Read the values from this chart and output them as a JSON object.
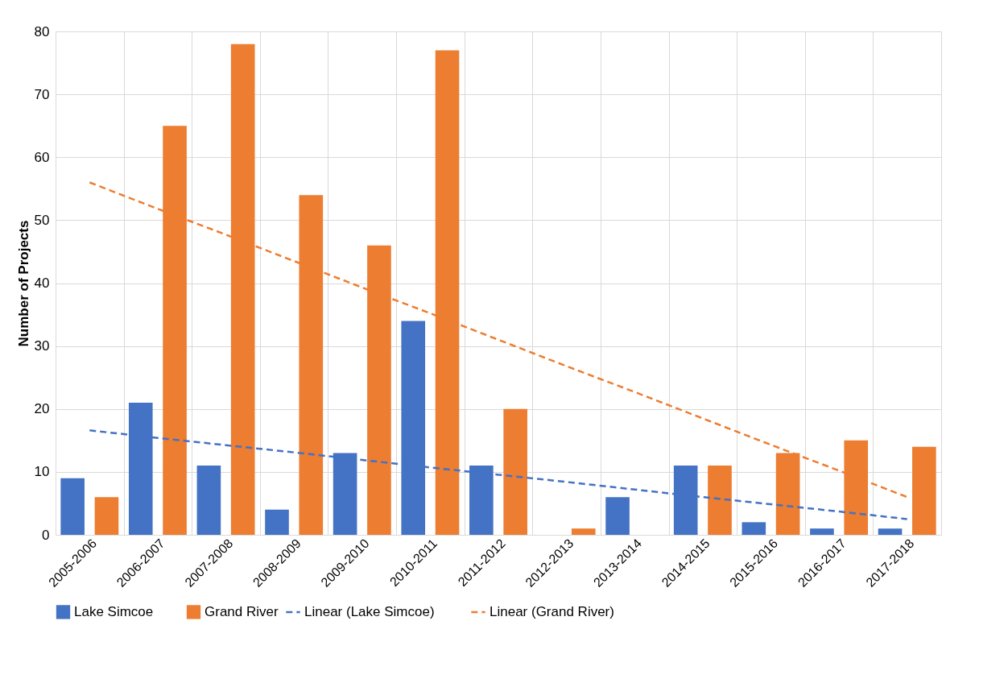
{
  "chart_data": {
    "type": "bar",
    "ylabel": "Number of Projects",
    "categories": [
      "2005-2006",
      "2006-2007",
      "2007-2008",
      "2008-2009",
      "2009-2010",
      "2010-2011",
      "2011-2012",
      "2012-2013",
      "2013-2014",
      "2014-2015",
      "2015-2016",
      "2016-2017",
      "2017-2018"
    ],
    "series": [
      {
        "name": "Lake Simcoe",
        "color": "#4472c4",
        "values": [
          9,
          21,
          11,
          4,
          13,
          34,
          11,
          0,
          6,
          11,
          2,
          1,
          1
        ]
      },
      {
        "name": "Grand River",
        "color": "#ed7d31",
        "values": [
          6,
          65,
          78,
          54,
          46,
          77,
          20,
          1,
          0,
          11,
          13,
          15,
          14
        ]
      },
      {
        "name": "Linear (Lake Simcoe)",
        "type": "line",
        "line_style": "dashed",
        "color": "#4472c4",
        "values": [
          16.6,
          15.4,
          14.25,
          13.1,
          11.9,
          10.7,
          9.55,
          8.4,
          7.2,
          6.0,
          4.85,
          3.7,
          2.5
        ]
      },
      {
        "name": "Linear (Grand River)",
        "type": "line",
        "line_style": "dashed",
        "color": "#ed7d31",
        "values": [
          56,
          51.8,
          47.7,
          43.5,
          39.3,
          35.2,
          31,
          26.8,
          22.7,
          18.5,
          14.3,
          10.2,
          6
        ]
      }
    ],
    "ylim": [
      0,
      80
    ],
    "yticks": [
      0,
      10,
      20,
      30,
      40,
      50,
      60,
      70,
      80
    ],
    "grid": true,
    "legend": "bottom"
  }
}
